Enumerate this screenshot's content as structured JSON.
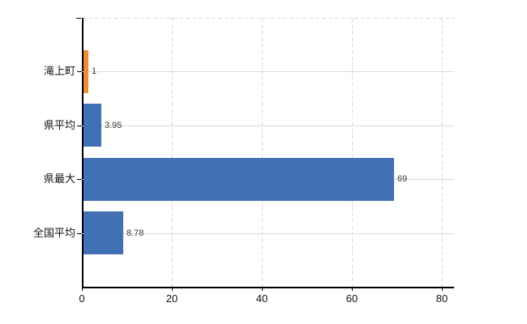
{
  "chart_data": {
    "type": "bar",
    "orientation": "horizontal",
    "title": "",
    "xlabel": "",
    "ylabel": "",
    "categories": [
      "滝上町",
      "県平均",
      "県最大",
      "全国平均"
    ],
    "values": [
      1,
      3.95,
      69,
      8.78
    ],
    "value_labels": [
      "1",
      "3.95",
      "69",
      "8.78"
    ],
    "bar_colors": [
      "#ee8c34",
      "#4170b4",
      "#4170b4",
      "#4170b4"
    ],
    "x_ticks": [
      0,
      20,
      40,
      60,
      80
    ],
    "x_tick_labels": [
      "0",
      "20",
      "40",
      "60",
      "80"
    ],
    "xlim": [
      0,
      82.7
    ],
    "grid": {
      "vertical": "dashed",
      "horizontal_category_lines": "solid",
      "top_border": "dashed"
    },
    "legend": "none"
  },
  "colors": {
    "bar_blue": "#4170b4",
    "bar_orange": "#ee8c34",
    "gridline": "#d9d9d9",
    "axis": "#000000",
    "value_label_text": "#3c3c3c",
    "tick_label_text": "#111111",
    "background": "#ffffff"
  }
}
